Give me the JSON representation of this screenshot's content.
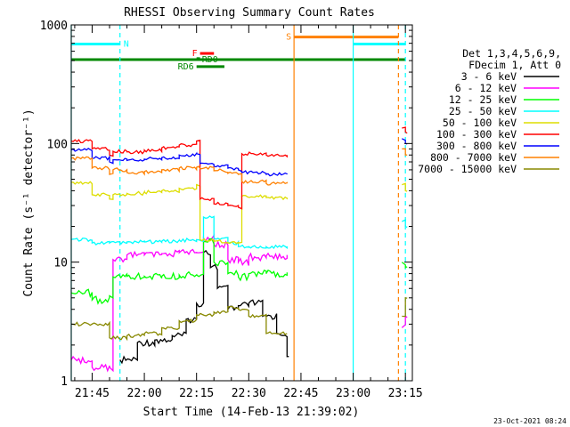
{
  "chart_data": {
    "type": "line",
    "title": "RHESSI Observing Summary Count Rates",
    "xlabel": "Start Time (14-Feb-13 21:39:02)",
    "ylabel": "Count Rate (s⁻¹ detector⁻¹)",
    "yscale": "log",
    "ylim": [
      1,
      1000
    ],
    "xlim": [
      "21:39",
      "23:17"
    ],
    "x_ticks": [
      "21:45",
      "22:00",
      "22:15",
      "22:30",
      "22:45",
      "23:00",
      "23:15"
    ],
    "y_ticks": [
      "1",
      "10",
      "100",
      "1000"
    ],
    "legend_header": [
      "Det 1,3,4,5,6,9,",
      "FDecim 1, Att 0"
    ],
    "legend_position": "right",
    "series": [
      {
        "name": "3 - 6 keV",
        "color": "#000000",
        "x": [
          "21:53",
          "21:58",
          "22:03",
          "22:08",
          "22:12",
          "22:15",
          "22:17",
          "22:19",
          "22:21",
          "22:24",
          "22:27",
          "22:30",
          "22:34",
          "22:38",
          "22:41"
        ],
        "y": [
          1.5,
          2.1,
          2.2,
          2.4,
          3.3,
          4.5,
          12,
          9,
          6,
          4,
          4.3,
          4.5,
          3.5,
          2.5,
          1.6
        ]
      },
      {
        "name": "6 - 12 keV",
        "color": "#ff00ff",
        "x": [
          "21:39",
          "21:45",
          "21:50",
          "21:51",
          "21:55",
          "22:00",
          "22:05",
          "22:10",
          "22:15",
          "22:17",
          "22:20",
          "22:24",
          "22:27",
          "22:30",
          "22:35",
          "22:41",
          "23:14",
          "23:15"
        ],
        "y": [
          1.5,
          1.3,
          1.3,
          10.5,
          11.5,
          11.5,
          11.8,
          12,
          12,
          16,
          14,
          10.5,
          10,
          11,
          11.3,
          11.5,
          2.8,
          3.5
        ]
      },
      {
        "name": "12 - 25 keV",
        "color": "#00ff00",
        "x": [
          "21:39",
          "21:45",
          "21:50",
          "21:51",
          "21:55",
          "22:00",
          "22:05",
          "22:10",
          "22:15",
          "22:17",
          "22:20",
          "22:24",
          "22:27",
          "22:30",
          "22:35",
          "22:41",
          "23:14",
          "23:15"
        ],
        "y": [
          5.5,
          4.8,
          5.2,
          7.5,
          7.6,
          7.6,
          7.6,
          7.8,
          7.8,
          15,
          10,
          8,
          7.5,
          8,
          8,
          8.2,
          10,
          9
        ]
      },
      {
        "name": "25 - 50 keV",
        "color": "#00ffff",
        "x": [
          "21:39",
          "21:45",
          "21:50",
          "21:55",
          "22:00",
          "22:05",
          "22:10",
          "22:15",
          "22:17",
          "22:20",
          "22:24",
          "22:27",
          "22:30",
          "22:35",
          "22:41",
          "23:14",
          "23:15"
        ],
        "y": [
          15.5,
          14.5,
          14.5,
          14.8,
          14.8,
          15,
          15.3,
          15.5,
          24,
          16,
          14.5,
          13.5,
          13.5,
          13.5,
          13.6,
          22,
          20
        ]
      },
      {
        "name": "50 - 100 keV",
        "color": "#dddd00",
        "x": [
          "21:39",
          "21:45",
          "21:50",
          "21:51",
          "21:55",
          "22:00",
          "22:05",
          "22:10",
          "22:15",
          "22:16",
          "22:20",
          "22:24",
          "22:27",
          "22:28",
          "22:35",
          "22:41",
          "23:14",
          "23:15"
        ],
        "y": [
          47,
          37,
          34,
          37,
          38,
          39,
          40,
          42,
          45,
          15.5,
          15,
          14.5,
          14.5,
          36,
          35,
          35,
          45,
          40
        ]
      },
      {
        "name": "100 - 300 keV",
        "color": "#ff0000",
        "x": [
          "21:39",
          "21:45",
          "21:50",
          "21:51",
          "21:55",
          "22:00",
          "22:05",
          "22:10",
          "22:15",
          "22:16",
          "22:20",
          "22:24",
          "22:27",
          "22:28",
          "22:35",
          "22:41",
          "23:14",
          "23:15"
        ],
        "y": [
          105,
          90,
          80,
          86,
          85,
          88,
          92,
          97,
          105,
          34,
          31,
          30,
          29,
          82,
          80,
          80,
          135,
          125
        ]
      },
      {
        "name": "300 - 800 keV",
        "color": "#0000ff",
        "x": [
          "21:39",
          "21:45",
          "21:50",
          "21:51",
          "21:55",
          "22:00",
          "22:05",
          "22:10",
          "22:15",
          "22:16",
          "22:20",
          "22:24",
          "22:27",
          "22:28",
          "22:35",
          "22:41",
          "23:14",
          "23:15"
        ],
        "y": [
          88,
          75,
          70,
          73,
          72,
          74,
          76,
          80,
          82,
          68,
          64,
          62,
          60,
          57,
          55,
          55,
          110,
          100
        ]
      },
      {
        "name": "800 - 7000 keV",
        "color": "#ff8000",
        "x": [
          "21:39",
          "21:45",
          "21:50",
          "21:51",
          "21:55",
          "22:00",
          "22:05",
          "22:10",
          "22:15",
          "22:20",
          "22:24",
          "22:27",
          "22:28",
          "22:35",
          "22:41",
          "23:14",
          "23:15"
        ],
        "y": [
          75,
          62,
          55,
          60,
          57,
          58,
          60,
          62,
          63,
          59,
          56,
          55,
          48,
          46,
          46,
          90,
          80
        ]
      },
      {
        "name": "7000 - 15000 keV",
        "color": "#888800",
        "x": [
          "21:39",
          "21:45",
          "21:50",
          "21:55",
          "22:00",
          "22:05",
          "22:10",
          "22:15",
          "22:20",
          "22:24",
          "22:27",
          "22:30",
          "22:35",
          "22:41",
          "23:14",
          "23:15"
        ],
        "y": [
          3.0,
          3.0,
          2.3,
          2.4,
          2.5,
          2.8,
          3.2,
          3.6,
          3.8,
          4.2,
          4.0,
          3.5,
          2.5,
          2.5,
          3.5,
          5
        ]
      }
    ],
    "flags": [
      {
        "label": "N",
        "color": "#00ffff",
        "start": "21:39",
        "end": "21:53",
        "level": 690,
        "show_label": true,
        "label_side": "end"
      },
      {
        "label": "N",
        "color": "#00ffff",
        "start": "23:00",
        "end": "23:15",
        "level": 690,
        "show_label": false,
        "label_side": "end"
      },
      {
        "label": "S",
        "color": "#ff8000",
        "start": "22:43",
        "end": "23:13",
        "level": 790,
        "show_label": true,
        "label_side": "start"
      },
      {
        "label": "F",
        "color": "#ff0000",
        "start": "22:16",
        "end": "22:20",
        "level": 575,
        "show_label": true,
        "label_side": "start"
      },
      {
        "label": "RD0",
        "color": "#008800",
        "start": "22:15",
        "end": "22:16",
        "level": 520,
        "show_label": true,
        "label_side": "start"
      },
      {
        "label": "",
        "color": "#008800",
        "start": "21:39",
        "end": "23:15",
        "level": 510,
        "show_label": false,
        "label_side": "start"
      },
      {
        "label": "RD6",
        "color": "#008800",
        "start": "22:15",
        "end": "22:23",
        "level": 445,
        "show_label": true,
        "label_side": "start"
      }
    ],
    "vertical_markers": [
      {
        "time": "21:39",
        "color": "#00ffff",
        "style": "solid"
      },
      {
        "time": "21:53",
        "color": "#00ffff",
        "style": "dashed"
      },
      {
        "time": "22:43",
        "color": "#ff8000",
        "style": "solid"
      },
      {
        "time": "23:00",
        "color": "#00ffff",
        "style": "solid"
      },
      {
        "time": "23:13",
        "color": "#ff8000",
        "style": "dashed"
      },
      {
        "time": "23:15",
        "color": "#00ffff",
        "style": "dashed"
      }
    ],
    "grid": false
  },
  "timestamp": "23-Oct-2021 08:24"
}
